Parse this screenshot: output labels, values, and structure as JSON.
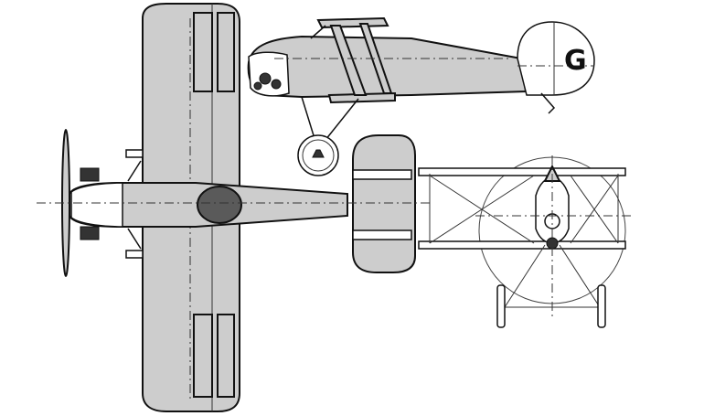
{
  "drawing": {
    "fin_marking": "G",
    "colors": {
      "paper": "#ffffff",
      "panel": "#cdcdcd",
      "ink": "#111111",
      "cockpit": "#5a5a5a"
    }
  }
}
